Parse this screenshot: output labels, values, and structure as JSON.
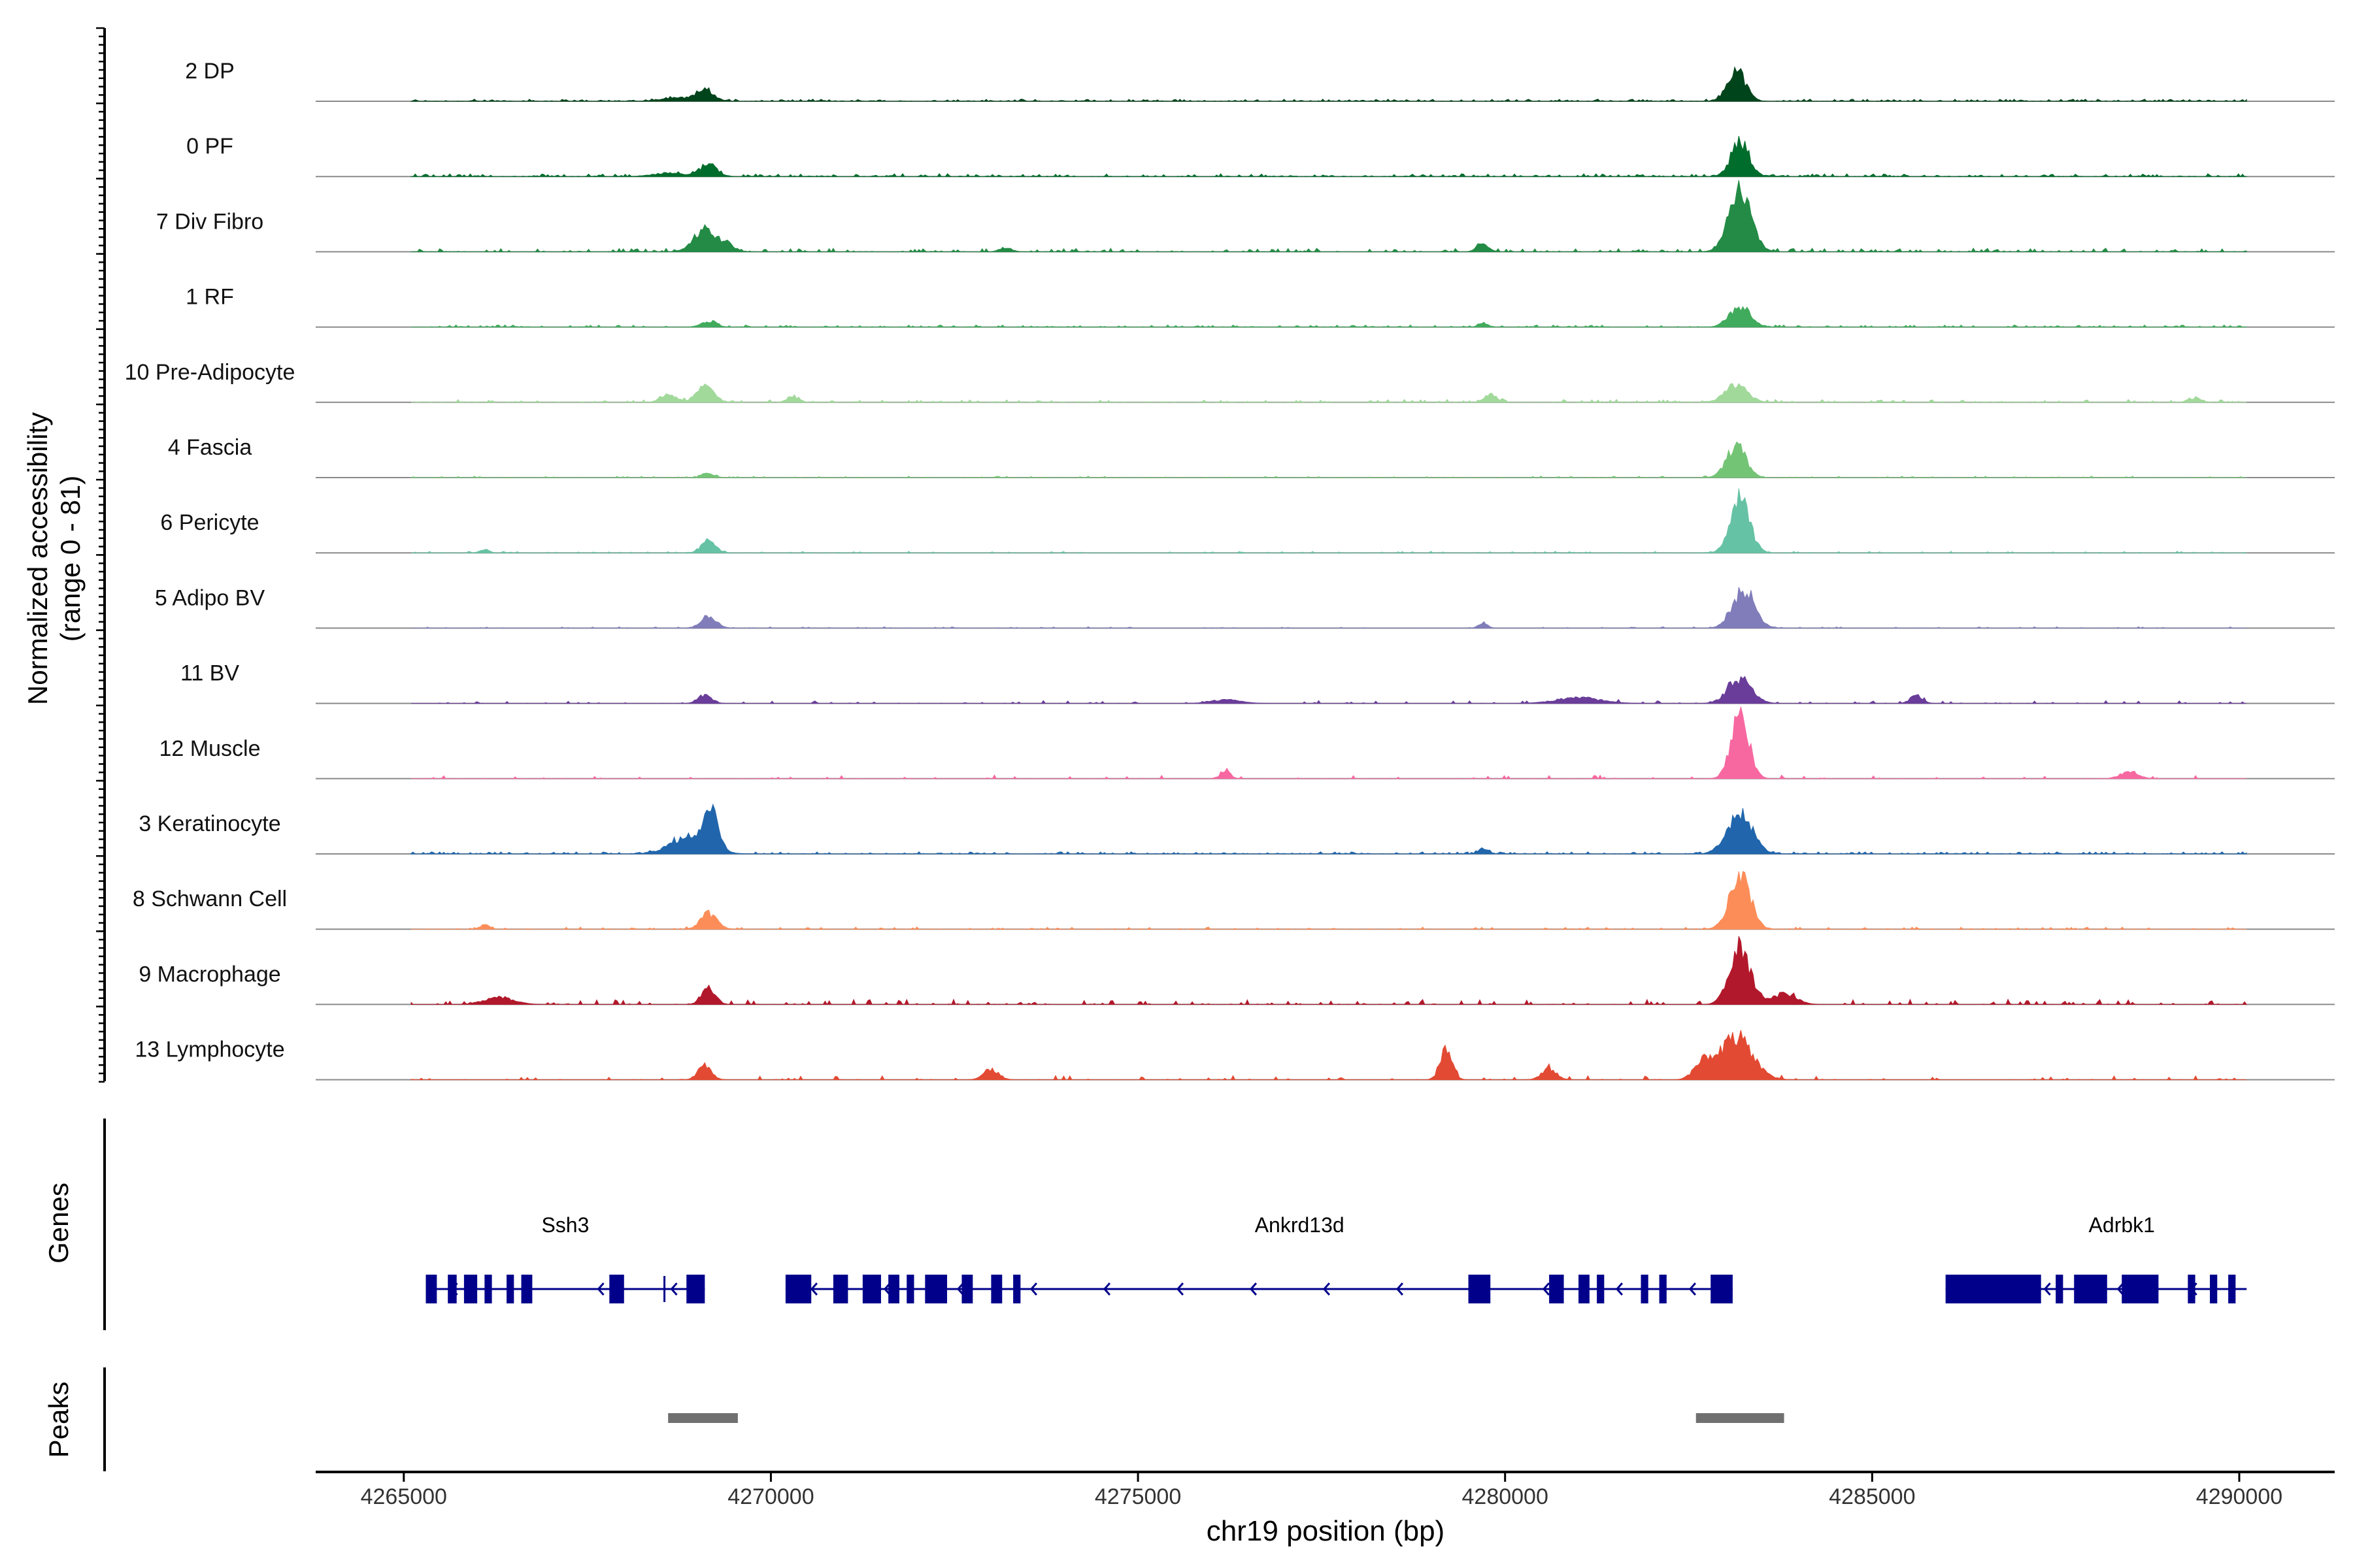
{
  "chart_data": {
    "type": "coverage",
    "title": "",
    "chromosome": "chr19",
    "xlabel": "chr19 position (bp)",
    "ylabel_line1": "Normalized accessibility",
    "ylabel_line2": "(range 0 - 81)",
    "xlim": [
      4263800,
      4291300
    ],
    "x_ticks": [
      4265000,
      4270000,
      4275000,
      4280000,
      4285000,
      4290000
    ],
    "x_tick_labels": [
      "4265000",
      "4270000",
      "4275000",
      "4280000",
      "4285000",
      "4290000"
    ],
    "y_range": [
      0,
      81
    ],
    "track_range": [
      4265100,
      4290100
    ],
    "tracks": [
      {
        "name": "2 DP",
        "color": "#00441b",
        "peaks": [
          [
            4269100,
            0.15,
            120
          ],
          [
            4283150,
            0.45,
            120
          ],
          [
            4268700,
            0.05,
            200
          ]
        ],
        "noise": 0.03,
        "gaps": 0.2
      },
      {
        "name": "0 PF",
        "color": "#006d2c",
        "peaks": [
          [
            4269150,
            0.18,
            110
          ],
          [
            4283200,
            0.5,
            120
          ],
          [
            4268600,
            0.05,
            200
          ]
        ],
        "noise": 0.04,
        "gaps": 0.3
      },
      {
        "name": "7 Div Fibro",
        "color": "#238b45",
        "peaks": [
          [
            4269100,
            0.3,
            150
          ],
          [
            4283200,
            0.9,
            150
          ],
          [
            4279700,
            0.12,
            80
          ],
          [
            4269400,
            0.1,
            100
          ],
          [
            4273200,
            0.06,
            80
          ]
        ],
        "noise": 0.05,
        "gaps": 0.5
      },
      {
        "name": "1 RF",
        "color": "#41ab5d",
        "peaks": [
          [
            4269150,
            0.08,
            100
          ],
          [
            4283200,
            0.3,
            140
          ],
          [
            4279700,
            0.06,
            60
          ]
        ],
        "noise": 0.03,
        "gaps": 0.45
      },
      {
        "name": "10 Pre-Adipocyte",
        "color": "#a1d99b",
        "peaks": [
          [
            4269100,
            0.22,
            120
          ],
          [
            4283150,
            0.25,
            150
          ],
          [
            4268600,
            0.12,
            100
          ],
          [
            4279800,
            0.12,
            80
          ],
          [
            4270300,
            0.08,
            80
          ],
          [
            4289400,
            0.06,
            80
          ]
        ],
        "noise": 0.04,
        "gaps": 0.55
      },
      {
        "name": "4 Fascia",
        "color": "#74c476",
        "peaks": [
          [
            4269150,
            0.06,
            80
          ],
          [
            4283150,
            0.45,
            130
          ]
        ],
        "noise": 0.02,
        "gaps": 0.6
      },
      {
        "name": "6 Pericyte",
        "color": "#66c2a4",
        "peaks": [
          [
            4269150,
            0.2,
            90
          ],
          [
            4283200,
            0.75,
            130
          ],
          [
            4266100,
            0.05,
            60
          ]
        ],
        "noise": 0.02,
        "gaps": 0.65
      },
      {
        "name": "5 Adipo BV",
        "color": "#807dba",
        "peaks": [
          [
            4269150,
            0.15,
            110
          ],
          [
            4283250,
            0.55,
            150
          ],
          [
            4279700,
            0.08,
            60
          ]
        ],
        "noise": 0.02,
        "gaps": 0.7
      },
      {
        "name": "11 BV",
        "color": "#6a3d9a",
        "peaks": [
          [
            4283200,
            0.35,
            160
          ],
          [
            4269100,
            0.12,
            90
          ],
          [
            4285600,
            0.12,
            80
          ],
          [
            4281000,
            0.08,
            300
          ],
          [
            4276200,
            0.05,
            200
          ]
        ],
        "noise": 0.04,
        "gaps": 0.8
      },
      {
        "name": "12 Muscle",
        "color": "#f768a1",
        "peaks": [
          [
            4283200,
            0.9,
            120
          ],
          [
            4276200,
            0.12,
            60
          ],
          [
            4288500,
            0.1,
            120
          ]
        ],
        "noise": 0.05,
        "gaps": 0.82
      },
      {
        "name": "3 Keratinocyte",
        "color": "#2166ac",
        "peaks": [
          [
            4269200,
            0.55,
            90
          ],
          [
            4268900,
            0.25,
            250
          ],
          [
            4283200,
            0.55,
            170
          ],
          [
            4279700,
            0.08,
            60
          ]
        ],
        "noise": 0.03,
        "gaps": 0.25
      },
      {
        "name": "8 Schwann Cell",
        "color": "#fc8d59",
        "peaks": [
          [
            4283200,
            0.75,
            140
          ],
          [
            4269150,
            0.22,
            110
          ],
          [
            4266100,
            0.06,
            60
          ]
        ],
        "noise": 0.03,
        "gaps": 0.65
      },
      {
        "name": "9 Macrophage",
        "color": "#b2182b",
        "peaks": [
          [
            4283200,
            0.8,
            140
          ],
          [
            4269150,
            0.25,
            90
          ],
          [
            4283800,
            0.15,
            160
          ],
          [
            4266300,
            0.1,
            200
          ]
        ],
        "noise": 0.07,
        "gaps": 0.7
      },
      {
        "name": "13 Lymphocyte",
        "color": "#e34a33",
        "peaks": [
          [
            4283150,
            0.6,
            220
          ],
          [
            4279200,
            0.45,
            80
          ],
          [
            4269100,
            0.2,
            90
          ],
          [
            4282700,
            0.25,
            120
          ],
          [
            4280600,
            0.15,
            100
          ],
          [
            4273000,
            0.15,
            100
          ]
        ],
        "noise": 0.06,
        "gaps": 0.8
      }
    ],
    "genes": {
      "track_label": "Genes",
      "color": "#00008b",
      "items": [
        {
          "name": "Ssh3",
          "label_x": 4267200,
          "start": 4265300,
          "end": 4269100,
          "strand": "-",
          "exons": [
            [
              4265300,
              4265450
            ],
            [
              4265600,
              4265720
            ],
            [
              4265820,
              4266000
            ],
            [
              4266100,
              4266200
            ],
            [
              4266400,
              4266500
            ],
            [
              4266600,
              4266750
            ],
            [
              4267800,
              4268000
            ],
            [
              4268850,
              4269100
            ]
          ],
          "ticks": [
            4268550
          ]
        },
        {
          "name": "Ankrd13d",
          "label_x": 4277200,
          "start": 4270200,
          "end": 4283100,
          "strand": "-",
          "exons": [
            [
              4270200,
              4270550
            ],
            [
              4270850,
              4271050
            ],
            [
              4271250,
              4271500
            ],
            [
              4271600,
              4271750
            ],
            [
              4271850,
              4271950
            ],
            [
              4272100,
              4272400
            ],
            [
              4272600,
              4272750
            ],
            [
              4273000,
              4273150
            ],
            [
              4273300,
              4273400
            ],
            [
              4279500,
              4279800
            ],
            [
              4280600,
              4280800
            ],
            [
              4281000,
              4281150
            ],
            [
              4281250,
              4281350
            ],
            [
              4281850,
              4281950
            ],
            [
              4282100,
              4282200
            ],
            [
              4282800,
              4283100
            ]
          ],
          "ticks": [
            4283050
          ]
        },
        {
          "name": "Adrbk1",
          "label_x": 4288400,
          "start": 4286000,
          "end": 4290100,
          "strand": "-",
          "exons": [
            [
              4286000,
              4287300
            ],
            [
              4287500,
              4287600
            ],
            [
              4287750,
              4288200
            ],
            [
              4288400,
              4288900
            ],
            [
              4289300,
              4289400
            ],
            [
              4289600,
              4289700
            ],
            [
              4289850,
              4289950
            ]
          ],
          "ticks": []
        }
      ]
    },
    "peak_regions": {
      "track_label": "Peaks",
      "color": "#707070",
      "regions": [
        [
          4268600,
          4269550
        ],
        [
          4282600,
          4283800
        ]
      ]
    }
  }
}
